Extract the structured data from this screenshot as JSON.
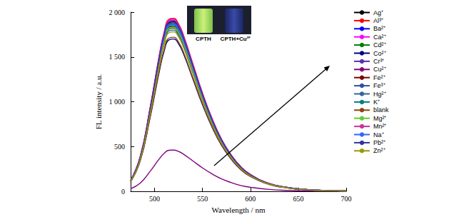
{
  "chart_data": {
    "type": "line",
    "x_label": "Wavelength / nm",
    "y_label": "FL intensity / a.u.",
    "annotations": [
      "CPTH",
      "CPTH+Cu²⁺"
    ],
    "xlim": [
      475,
      700
    ],
    "xticks": [
      500,
      550,
      600,
      650,
      700
    ],
    "ylim": [
      0,
      2000
    ],
    "yticks": [
      0,
      500,
      {
        "value": 1000,
        "label": "1 000"
      },
      {
        "value": 1500,
        "label": "1 500"
      },
      {
        "value": 2000,
        "label": "2 000"
      }
    ],
    "grid": false,
    "legend": "right",
    "x": [
      475,
      485,
      495,
      505,
      510,
      515,
      520,
      525,
      530,
      540,
      550,
      560,
      570,
      580,
      590,
      600,
      620,
      640,
      660,
      680,
      700
    ],
    "series": [
      {
        "name": "Ag⁺",
        "color": "#000000",
        "values": [
          119,
          378,
          895,
          1492,
          1741,
          1880,
          1890,
          1830,
          1711,
          1393,
          1074,
          796,
          567,
          398,
          269,
          184,
          85,
          40,
          18,
          8,
          4
        ]
      },
      {
        "name": "Al³⁺",
        "color": "#ff0000",
        "values": [
          122,
          386,
          914,
          1524,
          1778,
          1920,
          1930,
          1869,
          1747,
          1422,
          1097,
          813,
          579,
          406,
          274,
          188,
          86,
          41,
          18,
          8,
          4
        ]
      },
      {
        "name": "Ba²⁺",
        "color": "#0000ff",
        "values": [
          117,
          372,
          881,
          1468,
          1713,
          1850,
          1860,
          1801,
          1684,
          1371,
          1057,
          783,
          558,
          392,
          264,
          181,
          83,
          39,
          18,
          8,
          4
        ]
      },
      {
        "name": "Ca²⁺",
        "color": "#ff00ff",
        "values": [
          121,
          384,
          909,
          1516,
          1768,
          1910,
          1920,
          1859,
          1738,
          1415,
          1091,
          808,
          576,
          404,
          273,
          187,
          86,
          40,
          18,
          8,
          4
        ]
      },
      {
        "name": "Cd²⁺",
        "color": "#008000",
        "values": [
          115,
          364,
          862,
          1437,
          1676,
          1810,
          1820,
          1763,
          1648,
          1341,
          1035,
          766,
          546,
          383,
          259,
          177,
          81,
          38,
          17,
          8,
          4
        ]
      },
      {
        "name": "Co²⁺",
        "color": "#000080",
        "values": [
          107,
          340,
          805,
          1342,
          1566,
          1691,
          1700,
          1646,
          1539,
          1253,
          966,
          716,
          510,
          358,
          242,
          166,
          76,
          36,
          16,
          7,
          4
        ]
      },
      {
        "name": "Cr³⁺",
        "color": "#5a2fb0",
        "values": [
          119,
          376,
          891,
          1484,
          1732,
          1870,
          1880,
          1821,
          1702,
          1385,
          1069,
          792,
          564,
          396,
          267,
          183,
          84,
          40,
          18,
          8,
          4
        ]
      },
      {
        "name": "Cu²⁺",
        "color": "#800080",
        "values": [
          29,
          92,
          218,
          363,
          424,
          458,
          460,
          445,
          416,
          339,
          261,
          194,
          138,
          97,
          65,
          45,
          21,
          10,
          4,
          2,
          1
        ]
      },
      {
        "name": "Fe²⁺",
        "color": "#800000",
        "values": [
          116,
          368,
          872,
          1453,
          1695,
          1830,
          1840,
          1782,
          1666,
          1356,
          1046,
          775,
          552,
          387,
          261,
          179,
          82,
          39,
          17,
          8,
          4
        ]
      },
      {
        "name": "Fe³⁺",
        "color": "#2f4f9f",
        "values": [
          114,
          360,
          853,
          1421,
          1658,
          1791,
          1800,
          1743,
          1629,
          1326,
          1023,
          758,
          540,
          379,
          256,
          175,
          81,
          38,
          17,
          8,
          4
        ]
      },
      {
        "name": "Hg²⁺",
        "color": "#336699",
        "values": [
          118,
          374,
          886,
          1476,
          1722,
          1860,
          1870,
          1811,
          1693,
          1378,
          1063,
          787,
          561,
          394,
          266,
          182,
          84,
          39,
          18,
          8,
          4
        ]
      },
      {
        "name": "K⁺",
        "color": "#008080",
        "values": [
          117,
          370,
          876,
          1461,
          1704,
          1840,
          1850,
          1792,
          1675,
          1363,
          1052,
          779,
          555,
          389,
          263,
          180,
          83,
          39,
          18,
          8,
          4
        ]
      },
      {
        "name": "blank",
        "color": "#8b4513",
        "values": [
          109,
          344,
          815,
          1358,
          1584,
          1711,
          1720,
          1666,
          1557,
          1267,
          978,
          724,
          516,
          362,
          244,
          167,
          77,
          36,
          16,
          7,
          4
        ]
      },
      {
        "name": "Mg²⁺",
        "color": "#66cc33",
        "values": [
          116,
          366,
          867,
          1445,
          1686,
          1820,
          1830,
          1772,
          1657,
          1348,
          1040,
          771,
          549,
          385,
          260,
          178,
          82,
          39,
          17,
          8,
          4
        ]
      },
      {
        "name": "Mn²⁺",
        "color": "#cc3399",
        "values": [
          121,
          382,
          905,
          1508,
          1759,
          1900,
          1910,
          1850,
          1729,
          1407,
          1086,
          804,
          573,
          402,
          271,
          186,
          85,
          40,
          18,
          8,
          4
        ]
      },
      {
        "name": "Na⁺",
        "color": "#3366ff",
        "values": [
          117,
          372,
          881,
          1468,
          1713,
          1850,
          1860,
          1801,
          1684,
          1371,
          1057,
          783,
          558,
          392,
          264,
          181,
          83,
          39,
          18,
          8,
          4
        ]
      },
      {
        "name": "Pb²⁺",
        "color": "#333399",
        "values": [
          120,
          380,
          900,
          1500,
          1750,
          1890,
          1900,
          1840,
          1720,
          1400,
          1080,
          800,
          570,
          400,
          270,
          185,
          85,
          40,
          18,
          8,
          4
        ]
      },
      {
        "name": "Zn²⁺",
        "color": "#999900",
        "values": [
          112,
          356,
          843,
          1405,
          1639,
          1771,
          1780,
          1724,
          1611,
          1312,
          1012,
          749,
          534,
          375,
          253,
          173,
          80,
          37,
          17,
          7,
          4
        ]
      }
    ]
  }
}
